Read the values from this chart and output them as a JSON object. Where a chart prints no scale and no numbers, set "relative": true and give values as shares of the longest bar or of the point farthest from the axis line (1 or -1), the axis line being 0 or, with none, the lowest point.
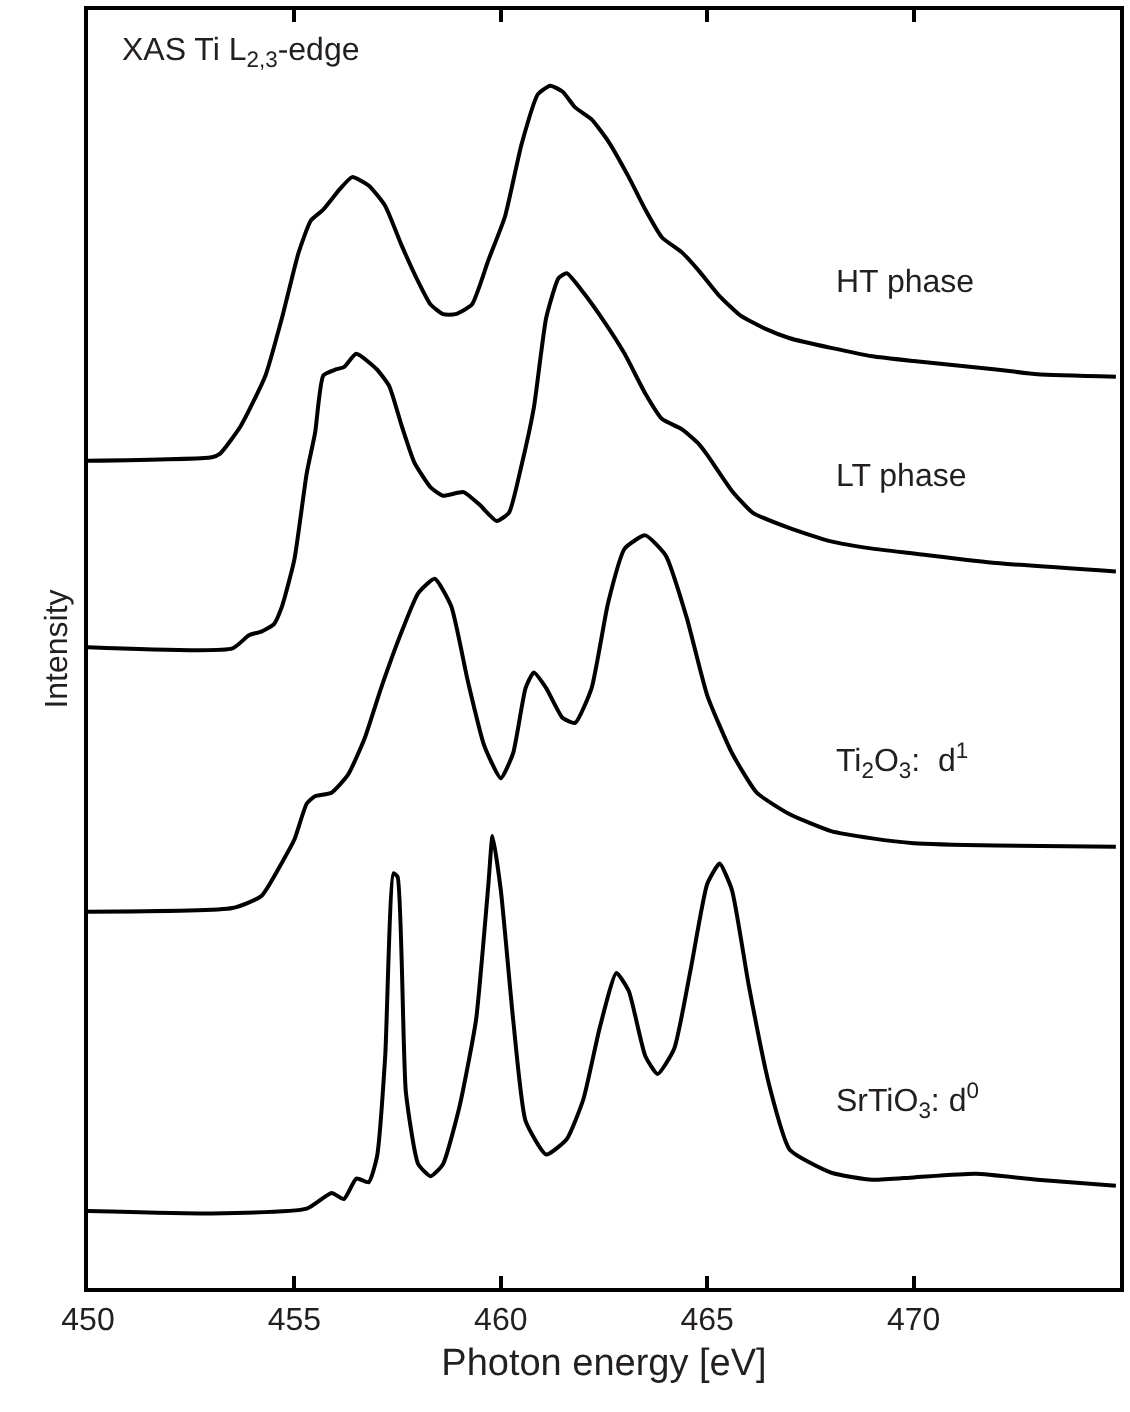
{
  "chart_data": {
    "type": "line",
    "relative": true,
    "xlabel": "Photon energy [eV]",
    "ylabel": "Intensity",
    "annotations": [
      "XAS Ti L$_{2,3}$-edge"
    ],
    "xlim": [
      450,
      475
    ],
    "xticks": [
      450,
      455,
      460,
      465,
      470
    ],
    "legend": false,
    "marker": "none",
    "line_style": "solid",
    "series": [
      {
        "name": "HT phase",
        "color": "#000000",
        "x": [
          450,
          453,
          453.2,
          453.7,
          454.3,
          454.7,
          455.1,
          455.4,
          455.7,
          456.1,
          456.4,
          456.8,
          457.2,
          457.6,
          458.0,
          458.3,
          458.6,
          458.9,
          459.3,
          459.7,
          460.1,
          460.5,
          460.9,
          461.2,
          461.5,
          461.8,
          462.2,
          462.6,
          463.1,
          463.5,
          463.9,
          464.4,
          464.8,
          465.3,
          465.8,
          466.4,
          467.0,
          468.0,
          469.0,
          470.0,
          472.0,
          473.0,
          474.9
        ],
        "values": [
          0.688,
          0.691,
          0.694,
          0.717,
          0.759,
          0.807,
          0.861,
          0.888,
          0.897,
          0.914,
          0.924,
          0.917,
          0.9,
          0.867,
          0.837,
          0.818,
          0.81,
          0.81,
          0.818,
          0.855,
          0.891,
          0.951,
          0.993,
          1.0,
          0.995,
          0.982,
          0.972,
          0.954,
          0.924,
          0.897,
          0.874,
          0.861,
          0.846,
          0.825,
          0.809,
          0.798,
          0.79,
          0.782,
          0.775,
          0.771,
          0.764,
          0.76,
          0.758
        ]
      },
      {
        "name": "LT phase",
        "color": "#000000",
        "x": [
          450,
          453.5,
          453.9,
          454.2,
          454.5,
          454.7,
          455.0,
          455.3,
          455.5,
          455.7,
          456.0,
          456.2,
          456.5,
          457.0,
          457.3,
          457.6,
          457.9,
          458.3,
          458.6,
          459.1,
          459.5,
          459.9,
          460.2,
          460.5,
          460.8,
          461.1,
          461.4,
          461.6,
          462.0,
          462.5,
          463.0,
          463.5,
          463.9,
          464.4,
          464.8,
          465.0,
          465.6,
          466.1,
          467.0,
          468.0,
          469.0,
          470.0,
          472.0,
          474.9
        ],
        "values": [
          0.533,
          0.532,
          0.543,
          0.546,
          0.552,
          0.567,
          0.606,
          0.678,
          0.711,
          0.759,
          0.764,
          0.766,
          0.777,
          0.764,
          0.75,
          0.717,
          0.687,
          0.666,
          0.659,
          0.662,
          0.651,
          0.638,
          0.645,
          0.684,
          0.732,
          0.807,
          0.84,
          0.844,
          0.828,
          0.804,
          0.777,
          0.744,
          0.723,
          0.714,
          0.702,
          0.693,
          0.663,
          0.645,
          0.632,
          0.621,
          0.615,
          0.611,
          0.603,
          0.596
        ]
      },
      {
        "name": "Ti$_{2}$O$_{3}$:  d$^{1}$",
        "color": "#000000",
        "x": [
          450,
          453.5,
          454.2,
          454.7,
          455.0,
          455.3,
          455.5,
          455.9,
          456.3,
          456.7,
          457.1,
          457.6,
          458.0,
          458.4,
          458.8,
          459.2,
          459.6,
          460.0,
          460.3,
          460.6,
          460.8,
          461.1,
          461.5,
          461.8,
          462.2,
          462.6,
          463.0,
          463.5,
          464.0,
          464.5,
          465.0,
          465.6,
          466.2,
          467.0,
          468.0,
          469.0,
          470.0,
          472.0,
          474.9
        ],
        "values": [
          0.313,
          0.316,
          0.326,
          0.354,
          0.373,
          0.403,
          0.409,
          0.412,
          0.427,
          0.457,
          0.499,
          0.546,
          0.578,
          0.59,
          0.567,
          0.505,
          0.451,
          0.424,
          0.445,
          0.499,
          0.512,
          0.499,
          0.474,
          0.47,
          0.499,
          0.57,
          0.615,
          0.626,
          0.609,
          0.558,
          0.493,
          0.445,
          0.412,
          0.394,
          0.38,
          0.374,
          0.37,
          0.368,
          0.367
        ]
      },
      {
        "name": "SrTiO$_{3}$: d$^{0}$",
        "color": "#000000",
        "x": [
          450,
          453,
          455.3,
          455.9,
          456.2,
          456.5,
          456.8,
          457.0,
          457.2,
          457.4,
          457.5,
          457.7,
          458.0,
          458.3,
          458.6,
          459.0,
          459.4,
          459.7,
          459.8,
          460.0,
          460.3,
          460.6,
          461.1,
          461.6,
          462.0,
          462.4,
          462.8,
          463.1,
          463.5,
          463.8,
          464.2,
          464.6,
          465.0,
          465.3,
          465.6,
          466.0,
          466.5,
          467.0,
          468.0,
          469.0,
          470.0,
          471.5,
          473.0,
          474.9
        ],
        "values": [
          0.064,
          0.062,
          0.066,
          0.079,
          0.074,
          0.091,
          0.088,
          0.109,
          0.193,
          0.345,
          0.342,
          0.163,
          0.103,
          0.093,
          0.103,
          0.151,
          0.223,
          0.336,
          0.376,
          0.331,
          0.223,
          0.139,
          0.111,
          0.124,
          0.157,
          0.217,
          0.262,
          0.247,
          0.193,
          0.178,
          0.199,
          0.265,
          0.336,
          0.353,
          0.331,
          0.253,
          0.169,
          0.115,
          0.096,
          0.09,
          0.092,
          0.095,
          0.09,
          0.085
        ]
      }
    ]
  }
}
